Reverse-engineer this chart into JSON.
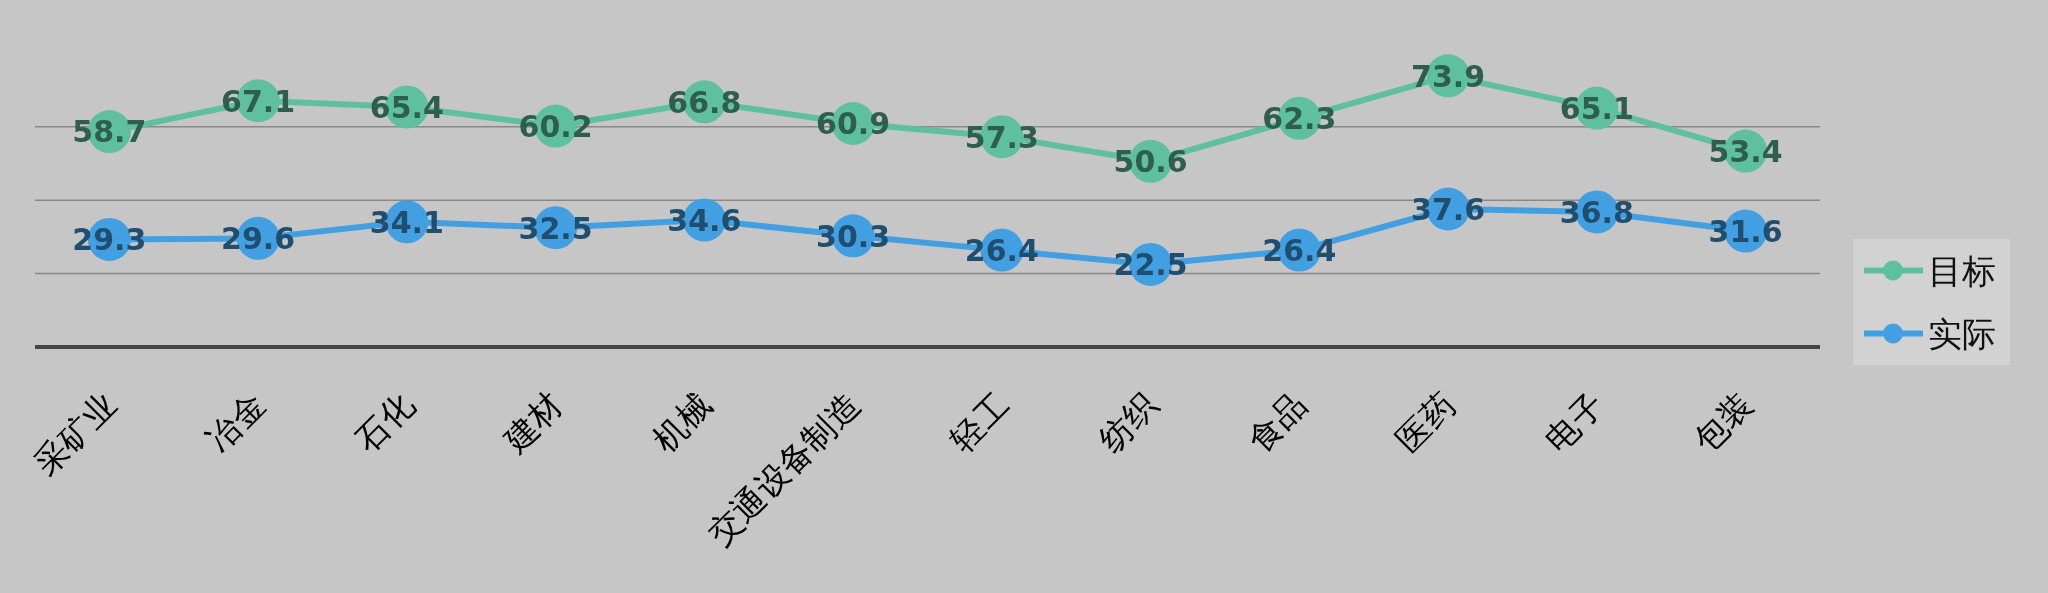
{
  "chart_data": {
    "type": "line",
    "categories": [
      "采矿业",
      "冶金",
      "石化",
      "建材",
      "机械",
      "交通设备制造",
      "轻工",
      "纺织",
      "食品",
      "医药",
      "电子",
      "包装"
    ],
    "series": [
      {
        "name": "目标",
        "color": "#5fc0a0",
        "values": [
          58.7,
          67.1,
          65.4,
          60.2,
          66.8,
          60.9,
          57.3,
          50.6,
          62.3,
          73.9,
          65.1,
          53.4
        ]
      },
      {
        "name": "实际",
        "color": "#42a0e2",
        "values": [
          29.3,
          29.6,
          34.1,
          32.5,
          34.6,
          30.3,
          26.4,
          22.5,
          26.4,
          37.6,
          36.8,
          31.6
        ]
      }
    ],
    "ref_lines": [
      {
        "axis": "y",
        "value": 20,
        "color": "#888888"
      },
      {
        "axis": "y",
        "value": 40,
        "color": "#888888"
      },
      {
        "axis": "y",
        "value": 60,
        "color": "#888888"
      }
    ],
    "legend": "right",
    "marker": "circle",
    "line_style": "solid",
    "data_labels": true
  }
}
